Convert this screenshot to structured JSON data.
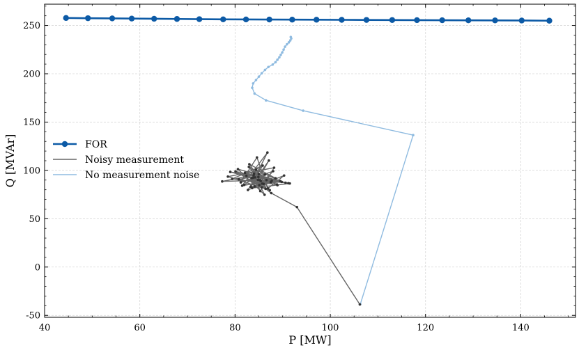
{
  "chart_data": {
    "type": "line",
    "xlabel": "P [MW]",
    "ylabel": "Q [MVAr]",
    "xlim": [
      40,
      151.5
    ],
    "ylim": [
      -52,
      272
    ],
    "x_ticks": [
      40,
      60,
      80,
      100,
      120,
      140
    ],
    "y_ticks": [
      -50,
      0,
      50,
      100,
      150,
      200,
      250
    ],
    "grid": true,
    "legend_position": "center-left",
    "series": [
      {
        "name": "FOR",
        "color": "#0c5aa6",
        "marker": "circle",
        "x": [
          44.5,
          49.1,
          54.2,
          58.3,
          63.0,
          67.8,
          72.5,
          77.5,
          82.3,
          87.2,
          92.0,
          97.1,
          102.4,
          107.6,
          113.0,
          118.2,
          123.5,
          129.0,
          134.6,
          140.2,
          146.0
        ],
        "y": [
          257.7,
          257.5,
          257.3,
          257.1,
          256.9,
          256.7,
          256.5,
          256.3,
          256.2,
          256.1,
          256.0,
          255.9,
          255.8,
          255.7,
          255.6,
          255.5,
          255.4,
          255.3,
          255.2,
          255.1,
          254.9
        ]
      },
      {
        "name": "Noisy measurement",
        "color": "#666666",
        "marker": "dot",
        "x": [
          106.2,
          93.0,
          87.6,
          83.5,
          85.1,
          88.0,
          81.2,
          84.6,
          86.9,
          90.3,
          82.7,
          85.8,
          79.4,
          88.8,
          84.0,
          86.2,
          80.6,
          89.5,
          83.3,
          87.1,
          84.8,
          91.2,
          82.1,
          86.4,
          78.5,
          88.2,
          85.3,
          83.9,
          87.7,
          81.5,
          86.8,
          84.2,
          90.6,
          80.1,
          85.6,
          88.5,
          83.0,
          86.0,
          82.4,
          87.3,
          84.4,
          89.8,
          81.9,
          85.0,
          77.3,
          86.6,
          83.6,
          91.5,
          84.9,
          79.0,
          88.9,
          85.2,
          82.9,
          87.5,
          84.1,
          86.3,
          80.8,
          85.7,
          83.8,
          85.4
        ],
        "y": [
          -38.7,
          62.0,
          76.5,
          92.0,
          84.8,
          99.2,
          87.6,
          113.4,
          81.3,
          94.7,
          79.8,
          105.0,
          91.2,
          85.5,
          96.8,
          74.8,
          101.3,
          88.9,
          83.1,
          110.2,
          90.4,
          86.7,
          97.5,
          80.9,
          93.6,
          102.8,
          78.6,
          95.1,
          89.3,
          84.2,
          118.5,
          92.8,
          87.2,
          99.0,
          82.4,
          91.9,
          106.4,
          86.0,
          94.4,
          79.5,
          100.7,
          88.1,
          85.0,
          96.2,
          88.6,
          90.0,
          81.7,
          86.5,
          93.2,
          98.4,
          84.7,
          89.9,
          103.6,
          87.9,
          83.4,
          95.7,
          90.8,
          86.3,
          92.5,
          89.0
        ]
      },
      {
        "name": "No measurement noise",
        "color": "#8fbbe0",
        "marker": "dot",
        "x": [
          106.3,
          117.4,
          94.3,
          86.5,
          84.1,
          83.6,
          83.8,
          84.4,
          85.0,
          85.6,
          86.3,
          87.0,
          87.9,
          88.5,
          88.9,
          89.3,
          89.6,
          89.9,
          90.2,
          90.5,
          90.9,
          91.3,
          91.6,
          91.8,
          91.7
        ],
        "y": [
          -38.5,
          136.5,
          161.8,
          172.5,
          179.5,
          185.5,
          190.0,
          193.5,
          197.0,
          200.5,
          204.0,
          207.0,
          209.5,
          212.0,
          214.5,
          217.0,
          219.5,
          222.0,
          225.0,
          228.0,
          230.5,
          232.5,
          234.5,
          236.5,
          238.0
        ]
      }
    ]
  }
}
